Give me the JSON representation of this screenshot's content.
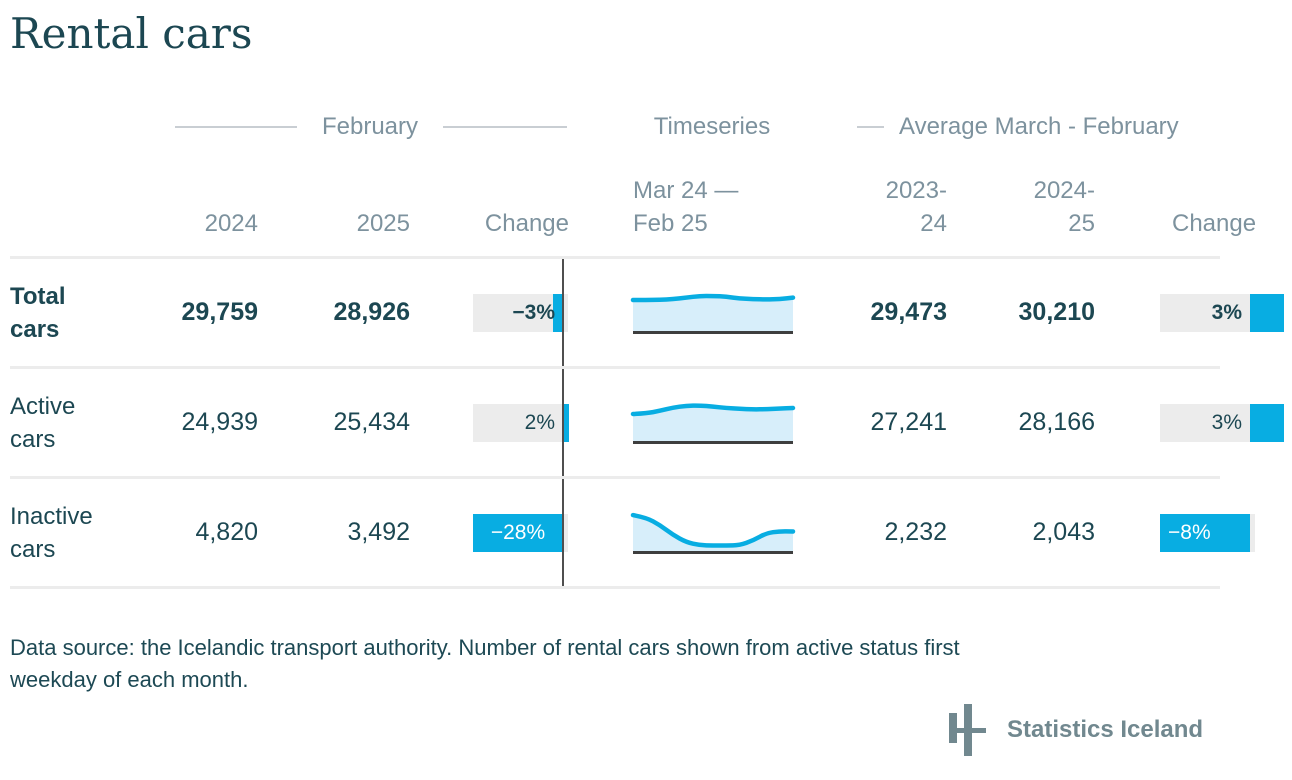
{
  "title": "Rental cars",
  "colors": {
    "accent_blue": "#08ade2",
    "sparkline_fill": "#d7eefa",
    "dark_teal": "#1c4752",
    "header_gray": "#7d929e",
    "pill_gray": "#ececec",
    "logo_gray": "#71888f"
  },
  "table": {
    "groups": {
      "february": "February",
      "timeseries": "Timeseries",
      "average": "Average March - February"
    },
    "headers": {
      "feb_2024": "2024",
      "feb_2025": "2025",
      "feb_change": "Change",
      "ts_line1": "Mar 24 —",
      "ts_line2": "Feb 25",
      "avg1_line1": "2023-",
      "avg1_line2": "24",
      "avg2_line1": "2024-",
      "avg2_line2": "25",
      "avg_change": "Change"
    },
    "rows": [
      {
        "label_line1": "Total",
        "label_line2": "cars",
        "feb_2024": "29,759",
        "feb_2025": "28,926",
        "feb_change": "−3%",
        "avg_2023_24": "29,473",
        "avg_2024_25": "30,210",
        "avg_change": "3%"
      },
      {
        "label_line1": "Active",
        "label_line2": "cars",
        "feb_2024": "24,939",
        "feb_2025": "25,434",
        "feb_change": "2%",
        "avg_2023_24": "27,241",
        "avg_2024_25": "28,166",
        "avg_change": "3%"
      },
      {
        "label_line1": "Inactive",
        "label_line2": "cars",
        "feb_2024": "4,820",
        "feb_2025": "3,492",
        "feb_change": "−28%",
        "avg_2023_24": "2,232",
        "avg_2024_25": "2,043",
        "avg_change": "−8%"
      }
    ]
  },
  "footer": {
    "note_line1": "Data source: the Icelandic transport authority. Number of rental cars shown from active status first",
    "note_line2": "weekday of each month.",
    "logo_text": "Statistics Iceland"
  },
  "chart_data": [
    {
      "type": "table",
      "title": "Rental cars",
      "column_groups": [
        "February",
        "Timeseries",
        "Average March - February"
      ],
      "columns": [
        "2024",
        "2025",
        "Change",
        "Mar 24 — Feb 25",
        "2023-24",
        "2024-25",
        "Change"
      ],
      "rows": [
        {
          "label": "Total cars",
          "feb_2024": 29759,
          "feb_2025": 28926,
          "feb_change_pct": -3,
          "avg_2023_24": 29473,
          "avg_2024_25": 30210,
          "avg_change_pct": 3
        },
        {
          "label": "Active cars",
          "feb_2024": 24939,
          "feb_2025": 25434,
          "feb_change_pct": 2,
          "avg_2023_24": 27241,
          "avg_2024_25": 28166,
          "avg_change_pct": 3
        },
        {
          "label": "Inactive cars",
          "feb_2024": 4820,
          "feb_2025": 3492,
          "feb_change_pct": -28,
          "avg_2023_24": 2232,
          "avg_2024_25": 2043,
          "avg_change_pct": -8
        }
      ],
      "notes": "Change bars drawn around a zero axis; bar length normalized to the largest absolute change in each Change column."
    },
    {
      "type": "area",
      "title": "Timeseries sparklines",
      "x_range": [
        "Mar 24",
        "Feb 25"
      ],
      "y_scale": "normalized 0-1 of sparkline height (estimated from pixels)",
      "series": [
        {
          "name": "Total cars",
          "values": [
            0.78,
            0.78,
            0.785,
            0.8,
            0.84,
            0.875,
            0.878,
            0.86,
            0.82,
            0.8,
            0.793,
            0.8,
            0.84
          ]
        },
        {
          "name": "Active cars",
          "values": [
            0.683,
            0.7,
            0.76,
            0.84,
            0.885,
            0.89,
            0.865,
            0.83,
            0.81,
            0.795,
            0.8,
            0.815,
            0.829
          ]
        },
        {
          "name": "Inactive cars",
          "values": [
            0.9,
            0.84,
            0.66,
            0.42,
            0.24,
            0.165,
            0.158,
            0.158,
            0.165,
            0.28,
            0.46,
            0.505,
            0.5
          ]
        }
      ],
      "legend": false,
      "grid": false
    }
  ]
}
